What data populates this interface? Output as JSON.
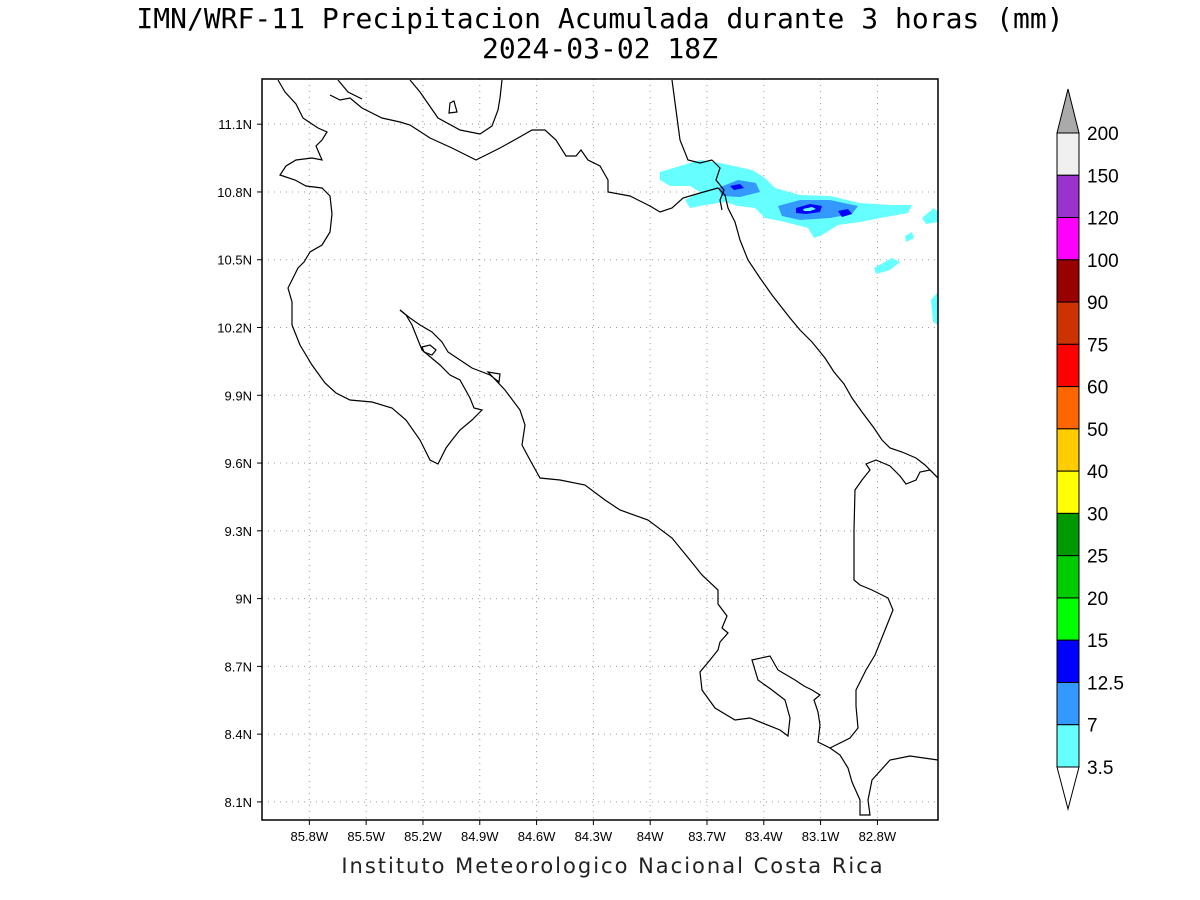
{
  "title": "IMN/WRF-11 Precipitacion Acumulada durante 3 horas (mm)",
  "subtitle": "2024-03-02 18Z",
  "footer": "Instituto Meteorologico Nacional Costa Rica",
  "map": {
    "lon_range": [
      -86.05,
      -82.48
    ],
    "lat_range": [
      8.02,
      11.3
    ],
    "lon_ticks": [
      "85.8W",
      "85.5W",
      "85.2W",
      "84.9W",
      "84.6W",
      "84.3W",
      "84W",
      "83.7W",
      "83.4W",
      "83.1W",
      "82.8W"
    ],
    "lat_ticks": [
      "11.1N",
      "10.8N",
      "10.5N",
      "10.2N",
      "9.9N",
      "9.6N",
      "9.3N",
      "9N",
      "8.7N",
      "8.4N",
      "8.1N"
    ],
    "grid": "dotted",
    "outline_color": "#000000"
  },
  "precip_cells": [
    {
      "lon": -83.8,
      "lat": 10.86,
      "mm": 3.5
    },
    {
      "lon": -83.55,
      "lat": 10.82,
      "mm": 7
    },
    {
      "lon": -83.15,
      "lat": 10.73,
      "mm": 7
    },
    {
      "lon": -83.2,
      "lat": 10.73,
      "mm": 12.5
    },
    {
      "lon": -83.02,
      "lat": 10.7,
      "mm": 12.5
    },
    {
      "lon": -82.85,
      "lat": 10.72,
      "mm": 3.5
    },
    {
      "lon": -82.75,
      "lat": 10.46,
      "mm": 3.5
    }
  ],
  "colorbar": {
    "levels": [
      "200",
      "150",
      "120",
      "100",
      "90",
      "75",
      "60",
      "50",
      "40",
      "30",
      "25",
      "20",
      "15",
      "12.5",
      "7",
      "3.5"
    ],
    "colors": [
      "#f0f0f0",
      "#9933cc",
      "#ff00ff",
      "#990000",
      "#cc3300",
      "#ff0000",
      "#ff6600",
      "#ffcc00",
      "#ffff00",
      "#009900",
      "#00cc00",
      "#00ff00",
      "#0000ff",
      "#3399ff",
      "#66ffff"
    ],
    "top_arrow_color": "#aaaaaa",
    "bottom_arrow_color": "#ffffff"
  }
}
